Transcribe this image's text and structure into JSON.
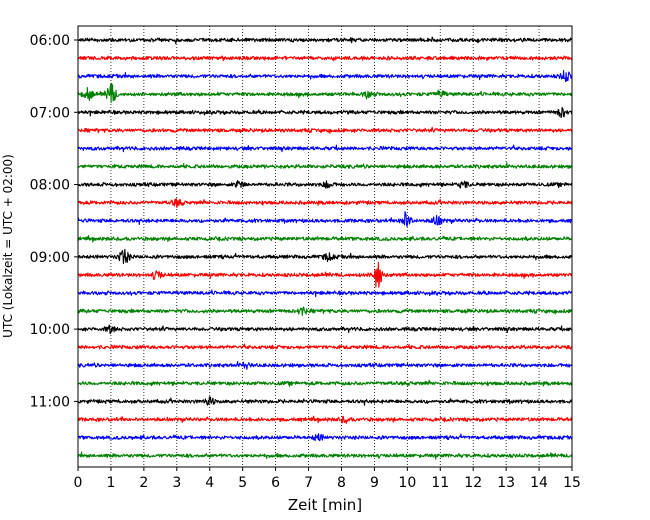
{
  "chart_data": {
    "type": "line",
    "title": "",
    "xlabel": "Zeit  [min]",
    "ylabel": "UTC (Lokalzeit = UTC + 02:00)",
    "xlim": [
      0,
      15
    ],
    "x_ticks": [
      "0",
      "1",
      "2",
      "3",
      "4",
      "5",
      "6",
      "7",
      "8",
      "9",
      "10",
      "11",
      "12",
      "13",
      "14",
      "15"
    ],
    "y_ticks": [
      "06:00",
      "07:00",
      "08:00",
      "09:00",
      "10:00",
      "11:00"
    ],
    "grid": "vertical dotted",
    "trace_colors": [
      "#000000",
      "#ff0000",
      "#0000ff",
      "#008000"
    ],
    "trace_start_hour": 6.0,
    "trace_interval_min": 15,
    "trace_count": 24,
    "events": [
      {
        "trace": 2,
        "minute": 14.8,
        "amplitude": 0.6
      },
      {
        "trace": 3,
        "minute": 0.3,
        "amplitude": 0.7
      },
      {
        "trace": 3,
        "minute": 1.0,
        "amplitude": 1.2
      },
      {
        "trace": 3,
        "minute": 8.8,
        "amplitude": 0.4
      },
      {
        "trace": 3,
        "minute": 11.0,
        "amplitude": 0.4
      },
      {
        "trace": 4,
        "minute": 14.7,
        "amplitude": 0.5
      },
      {
        "trace": 8,
        "minute": 4.9,
        "amplitude": 0.4
      },
      {
        "trace": 8,
        "minute": 7.6,
        "amplitude": 0.4
      },
      {
        "trace": 8,
        "minute": 11.7,
        "amplitude": 0.4
      },
      {
        "trace": 9,
        "minute": 3.0,
        "amplitude": 0.4
      },
      {
        "trace": 10,
        "minute": 9.95,
        "amplitude": 1.0
      },
      {
        "trace": 10,
        "minute": 10.9,
        "amplitude": 0.7
      },
      {
        "trace": 12,
        "minute": 1.4,
        "amplitude": 0.9
      },
      {
        "trace": 12,
        "minute": 7.6,
        "amplitude": 0.4
      },
      {
        "trace": 13,
        "minute": 2.4,
        "amplitude": 0.5
      },
      {
        "trace": 13,
        "minute": 9.1,
        "amplitude": 1.6
      },
      {
        "trace": 15,
        "minute": 6.8,
        "amplitude": 0.4
      },
      {
        "trace": 16,
        "minute": 1.0,
        "amplitude": 0.4
      },
      {
        "trace": 18,
        "minute": 5.1,
        "amplitude": 0.3
      },
      {
        "trace": 20,
        "minute": 4.0,
        "amplitude": 0.4
      },
      {
        "trace": 21,
        "minute": 8.1,
        "amplitude": 0.3
      },
      {
        "trace": 22,
        "minute": 7.3,
        "amplitude": 0.4
      }
    ]
  }
}
